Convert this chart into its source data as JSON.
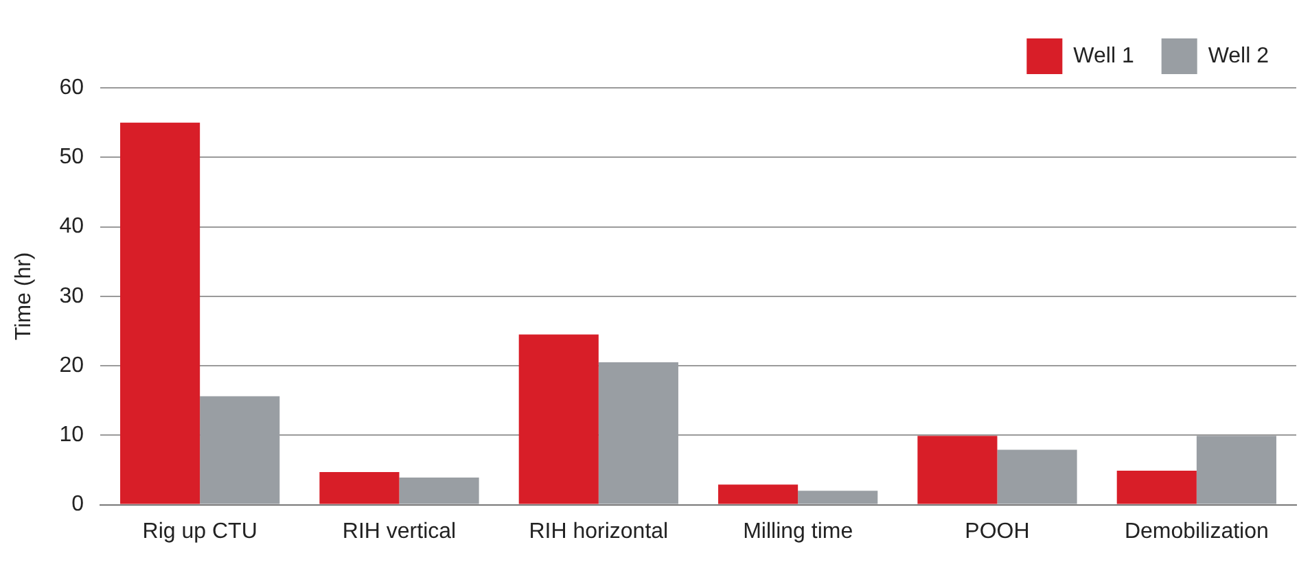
{
  "chart_data": {
    "type": "bar",
    "ylabel": "Time (hr)",
    "categories": [
      "Rig up CTU",
      "RIH vertical",
      "RIH horizontal",
      "Milling time",
      "POOH",
      "Demobilization"
    ],
    "series": [
      {
        "name": "Well 1",
        "color": "#d81e28",
        "values": [
          55,
          4.7,
          24.5,
          2.9,
          9.9,
          4.9
        ]
      },
      {
        "name": "Well 2",
        "color": "#999ea3",
        "values": [
          15.6,
          3.9,
          20.5,
          2,
          7.9,
          9.9
        ]
      }
    ],
    "ylim": [
      0,
      60
    ],
    "yticks": [
      0,
      10,
      20,
      30,
      40,
      50,
      60
    ],
    "grid": "y",
    "legend": "top right"
  }
}
